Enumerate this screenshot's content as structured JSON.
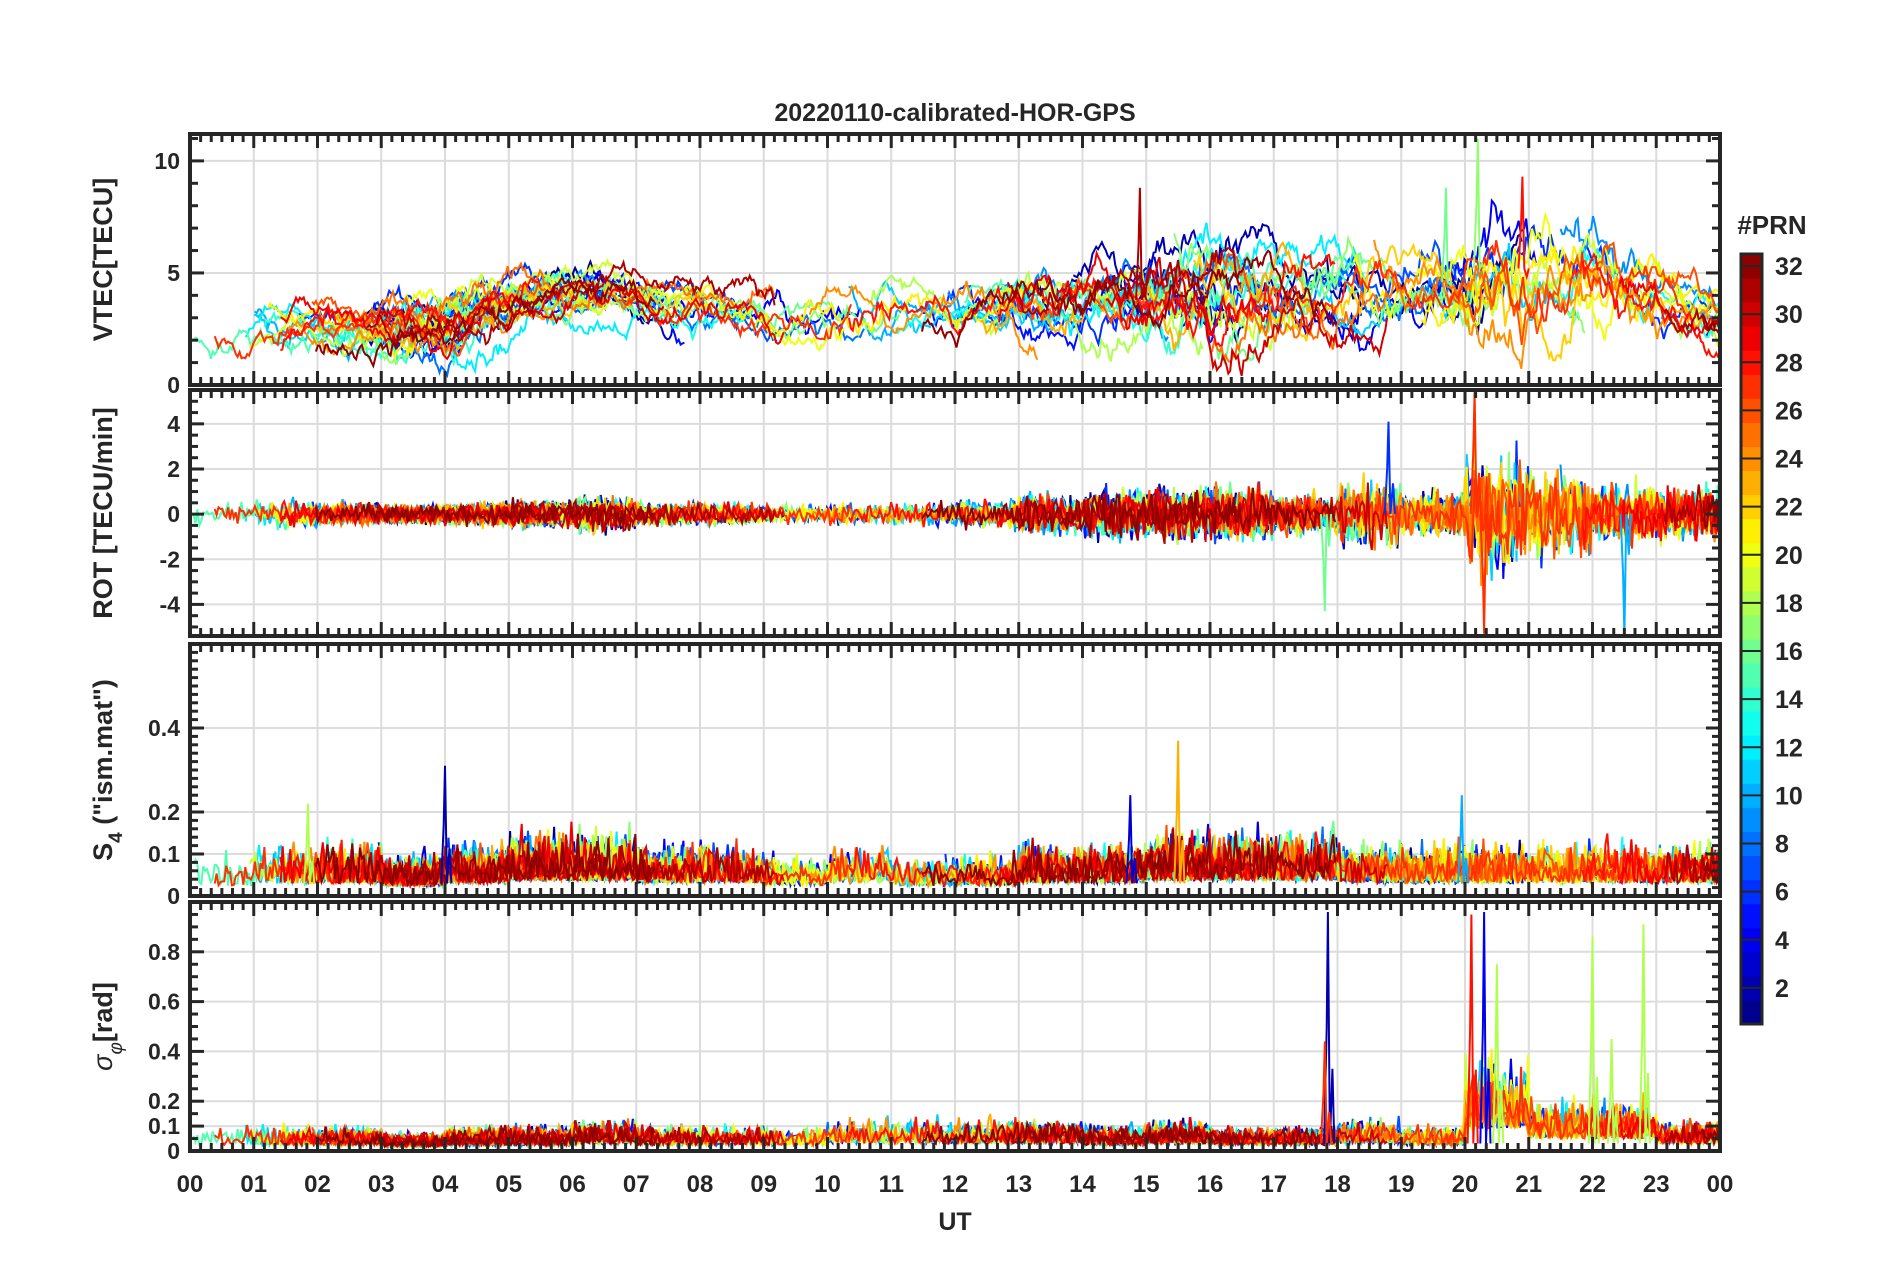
{
  "chart_data": {
    "type": "line",
    "title": "20220110-calibrated-HOR-GPS",
    "xlabel": "UT",
    "xlim": [
      0,
      24
    ],
    "xtick_labels": [
      "00",
      "01",
      "02",
      "03",
      "04",
      "05",
      "06",
      "07",
      "08",
      "09",
      "10",
      "11",
      "12",
      "13",
      "14",
      "15",
      "16",
      "17",
      "18",
      "19",
      "20",
      "21",
      "22",
      "23",
      "00"
    ],
    "grid": true,
    "colorbar": {
      "title": "#PRN",
      "range": [
        1,
        32
      ],
      "levels": 32,
      "colormap": "jet",
      "tick_labels": [
        "2",
        "4",
        "6",
        "8",
        "10",
        "12",
        "14",
        "16",
        "18",
        "20",
        "22",
        "24",
        "26",
        "28",
        "30",
        "32"
      ],
      "placement": "right"
    },
    "panels": [
      {
        "id": "vtec",
        "ylabel": "VTEC[TECU]",
        "ylim": [
          0,
          11.2
        ],
        "yticks": [
          0,
          5,
          10
        ],
        "ytick_labels": [
          "0",
          "5",
          "10"
        ],
        "hourly_typical": [
          2.5,
          2.7,
          2.6,
          2.5,
          3.8,
          4.2,
          4.0,
          3.5,
          3.2,
          3.0,
          3.2,
          3.4,
          3.8,
          4.0,
          3.8,
          4.5,
          4.3,
          4.2,
          4.4,
          4.6,
          5.2,
          5.0,
          4.2,
          3.0
        ],
        "hourly_spread": [
          1.0,
          1.0,
          1.1,
          1.2,
          1.2,
          1.0,
          1.0,
          1.0,
          1.0,
          1.1,
          1.2,
          1.0,
          1.2,
          1.3,
          1.4,
          2.0,
          1.8,
          1.5,
          1.6,
          1.6,
          2.5,
          2.2,
          1.8,
          1.2
        ],
        "peaks": [
          {
            "x": 14.9,
            "y": 8.8,
            "prn": 31
          },
          {
            "x": 20.2,
            "y": 11,
            "prn": 17
          },
          {
            "x": 19.7,
            "y": 8.8,
            "prn": 16
          },
          {
            "x": 20.9,
            "y": 9.3,
            "prn": 28
          }
        ]
      },
      {
        "id": "rot",
        "ylabel": "ROT [TECU/min]",
        "ylim": [
          -5.4,
          5.5
        ],
        "yticks": [
          -4,
          -2,
          0,
          2,
          4
        ],
        "ytick_labels": [
          "-4",
          "-2",
          "0",
          "2",
          "4"
        ],
        "hourly_amplitude": [
          0.5,
          0.6,
          0.5,
          0.4,
          0.5,
          0.6,
          0.8,
          0.5,
          0.5,
          0.4,
          0.5,
          0.5,
          0.6,
          0.9,
          1.1,
          1.2,
          1.2,
          0.9,
          1.4,
          1.0,
          2.6,
          2.0,
          1.4,
          1.2
        ],
        "peaks": [
          {
            "x": 17.8,
            "y": -4.3,
            "prn": 16
          },
          {
            "x": 20.15,
            "y": 5.5,
            "prn": 27
          },
          {
            "x": 20.3,
            "y": -5.3,
            "prn": 27
          },
          {
            "x": 22.5,
            "y": -5.4,
            "prn": 10
          },
          {
            "x": 18.8,
            "y": 4.1,
            "prn": 6
          }
        ]
      },
      {
        "id": "s4",
        "ylabel": "S4 (\"ism.mat\")",
        "ylabel_main": "S",
        "ylabel_sub": "4",
        "ylabel_rest": " (\"ism.mat\")",
        "ylim": [
          0,
          0.6
        ],
        "yticks": [
          0,
          0.1,
          0.2,
          0.4
        ],
        "ytick_labels": [
          "0",
          "0.1",
          "0.2",
          "0.4"
        ],
        "hourly_typical": [
          0.04,
          0.05,
          0.05,
          0.04,
          0.05,
          0.06,
          0.06,
          0.05,
          0.05,
          0.04,
          0.05,
          0.04,
          0.04,
          0.05,
          0.05,
          0.06,
          0.06,
          0.06,
          0.05,
          0.05,
          0.05,
          0.05,
          0.05,
          0.05
        ],
        "peaks": [
          {
            "x": 4.0,
            "y": 0.31,
            "prn": 2
          },
          {
            "x": 15.5,
            "y": 0.37,
            "prn": 23
          },
          {
            "x": 14.75,
            "y": 0.24,
            "prn": 3
          },
          {
            "x": 19.95,
            "y": 0.24,
            "prn": 10
          },
          {
            "x": 1.85,
            "y": 0.22,
            "prn": 18
          }
        ]
      },
      {
        "id": "sigma_phi",
        "ylabel": "σφ[rad]",
        "ylabel_main": "σ",
        "ylabel_sub": "φ",
        "ylabel_rest": "[rad]",
        "ylim": [
          0,
          1.0
        ],
        "yticks": [
          0,
          0.1,
          0.2,
          0.4,
          0.6,
          0.8
        ],
        "ytick_labels": [
          "0",
          "0.1",
          "0.2",
          "0.4",
          "0.6",
          "0.8"
        ],
        "hourly_typical": [
          0.04,
          0.04,
          0.04,
          0.03,
          0.04,
          0.04,
          0.05,
          0.04,
          0.04,
          0.04,
          0.05,
          0.05,
          0.05,
          0.05,
          0.04,
          0.05,
          0.04,
          0.04,
          0.05,
          0.04,
          0.15,
          0.08,
          0.08,
          0.05
        ],
        "peaks": [
          {
            "x": 17.85,
            "y": 0.96,
            "prn": 2
          },
          {
            "x": 17.8,
            "y": 0.44,
            "prn": 27
          },
          {
            "x": 20.1,
            "y": 0.95,
            "prn": 28
          },
          {
            "x": 20.3,
            "y": 0.96,
            "prn": 4
          },
          {
            "x": 20.5,
            "y": 0.75,
            "prn": 18
          },
          {
            "x": 22.0,
            "y": 0.86,
            "prn": 18
          },
          {
            "x": 22.8,
            "y": 0.91,
            "prn": 18
          },
          {
            "x": 22.3,
            "y": 0.45,
            "prn": 18
          }
        ]
      }
    ]
  }
}
